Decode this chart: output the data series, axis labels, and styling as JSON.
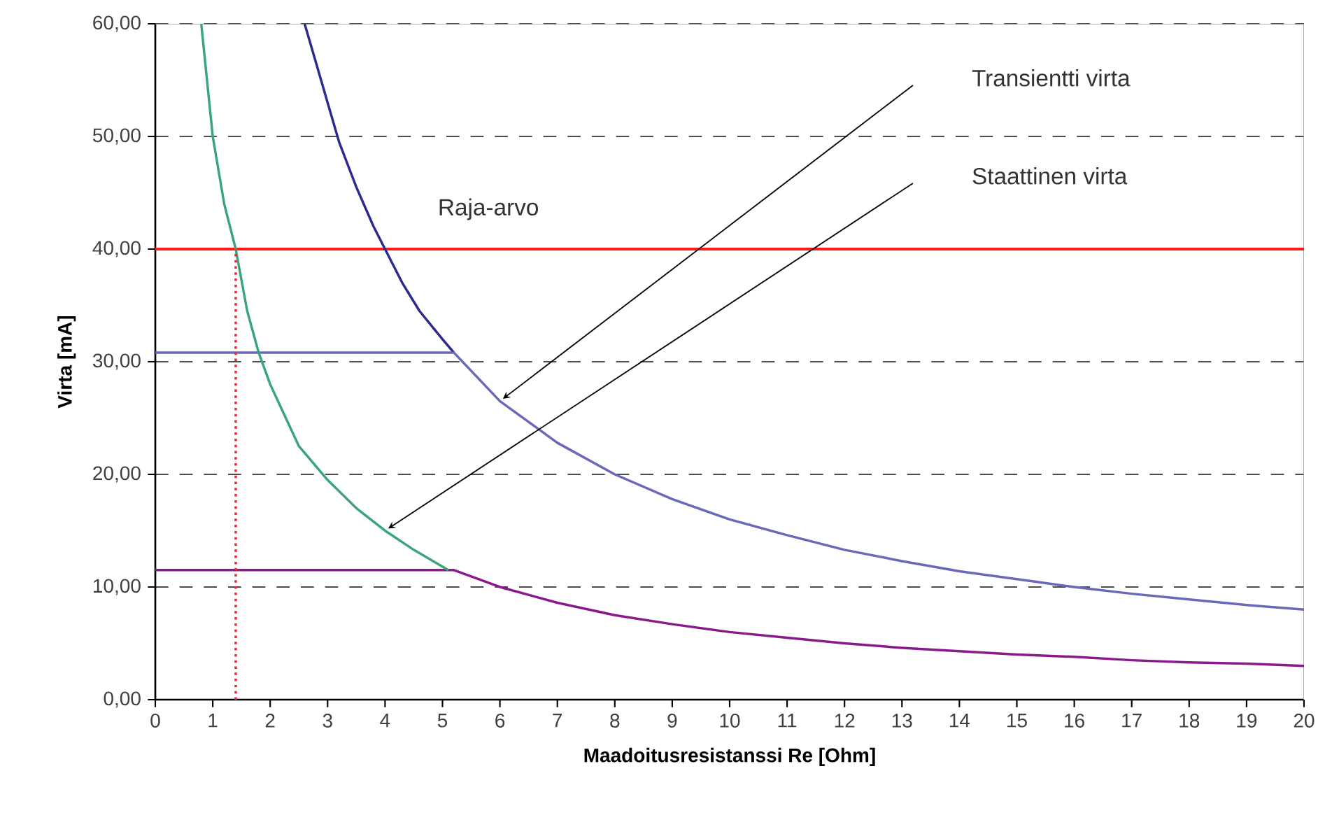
{
  "chart_data": {
    "type": "line",
    "xlabel": "Maadoitusresistanssi Re [Ohm]",
    "ylabel": "Virta [mA]",
    "xlim": [
      0,
      20
    ],
    "xticks": [
      0,
      1,
      2,
      3,
      4,
      5,
      6,
      7,
      8,
      9,
      10,
      11,
      12,
      13,
      14,
      15,
      16,
      17,
      18,
      19,
      20
    ],
    "ylim": [
      0,
      60
    ],
    "yticks": [
      {
        "value": 0,
        "label": "0,00"
      },
      {
        "value": 10,
        "label": "10,00"
      },
      {
        "value": 20,
        "label": "20,00"
      },
      {
        "value": 30,
        "label": "30,00"
      },
      {
        "value": 40,
        "label": "40,00"
      },
      {
        "value": 50,
        "label": "50,00"
      },
      {
        "value": 60,
        "label": "60,00"
      }
    ],
    "grid": "y",
    "series": [
      {
        "color": "#2b2b8f",
        "x": [
          2.6,
          2.8,
          3.0,
          3.2,
          3.5,
          3.8,
          4.0,
          4.3,
          4.6,
          5.0,
          5.2
        ],
        "values": [
          60,
          56.5,
          53,
          49.5,
          45.5,
          42,
          40,
          37,
          34.5,
          32,
          30.8
        ]
      },
      {
        "color": "#6a68b8",
        "x": [
          0,
          5.2,
          6,
          7,
          8,
          9,
          10,
          11,
          12,
          13,
          14,
          15,
          16,
          17,
          18,
          19,
          20
        ],
        "values": [
          30.8,
          30.8,
          26.5,
          22.8,
          20,
          17.8,
          16,
          14.6,
          13.3,
          12.3,
          11.4,
          10.7,
          10,
          9.4,
          8.9,
          8.4,
          8
        ]
      },
      {
        "color": "#8a1a8c",
        "x": [
          0,
          5.2,
          6,
          7,
          8,
          9,
          10,
          11,
          12,
          13,
          14,
          15,
          16,
          17,
          18,
          19,
          20
        ],
        "values": [
          11.5,
          11.5,
          10,
          8.6,
          7.5,
          6.7,
          6,
          5.5,
          5,
          4.6,
          4.3,
          4,
          3.8,
          3.5,
          3.3,
          3.2,
          3
        ]
      },
      {
        "color": "#3aa57a",
        "x": [
          0.8,
          0.9,
          1.0,
          1.2,
          1.4,
          1.6,
          1.8,
          2.0,
          2.5,
          3.0,
          3.5,
          4.0,
          4.5,
          5.1
        ],
        "values": [
          60,
          55,
          50,
          44,
          40,
          34.5,
          30.8,
          28,
          22.5,
          19.5,
          17,
          15,
          13.3,
          11.5
        ]
      },
      {
        "color": "#e8283c",
        "line_style": "dotted",
        "x": [
          1.4,
          1.4
        ],
        "values": [
          0,
          40
        ]
      }
    ],
    "ref_lines": [
      {
        "axis": "y",
        "value": 40,
        "label": "Raja-arvo",
        "color": "#ff1a1a"
      }
    ],
    "annotations": [
      "Transientti virta",
      "Staattinen virta"
    ]
  }
}
